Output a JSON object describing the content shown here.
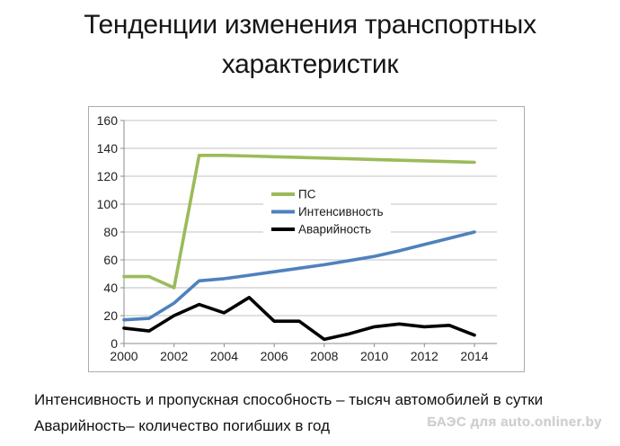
{
  "title": "Тенденции изменения транспортных характеристик",
  "footnotes": [
    "Интенсивность и пропускная способность – тысяч автомобилей в сутки",
    "Аварийность– количество погибших в год"
  ],
  "watermark": "БАЭС для auto.onliner.by",
  "colors": {
    "ps_green": "#9BBB59",
    "intensity_blue": "#4F81BD",
    "accidents_black": "#000000",
    "gridline": "#C2C2C2",
    "axis": "#8C8C8C",
    "frame_border": "#ABABAB"
  },
  "chart_data": {
    "type": "line",
    "title": "",
    "xlabel": "",
    "ylabel": "",
    "x": [
      2000,
      2001,
      2002,
      2003,
      2004,
      2005,
      2006,
      2007,
      2008,
      2009,
      2010,
      2011,
      2012,
      2013,
      2014
    ],
    "xticks": [
      2000,
      2002,
      2004,
      2006,
      2008,
      2010,
      2012,
      2014
    ],
    "ylim": [
      0,
      160
    ],
    "ytick_step": 20,
    "grid": true,
    "legend_position": "inside center-right",
    "series": [
      {
        "name": "ПС",
        "color": "#9BBB59",
        "values": [
          48,
          48,
          40,
          135,
          135,
          134.5,
          134,
          133.5,
          133,
          132.5,
          132,
          131.5,
          131,
          130.5,
          130
        ]
      },
      {
        "name": "Интенсивность",
        "color": "#4F81BD",
        "values": [
          17,
          18,
          29,
          45,
          46.5,
          49,
          51.5,
          54,
          56.5,
          59.5,
          62.5,
          66.5,
          71,
          75.5,
          80
        ]
      },
      {
        "name": "Аварийность",
        "color": "#000000",
        "values": [
          11,
          9,
          20,
          28,
          22,
          33,
          16,
          16,
          3,
          7,
          12,
          14,
          12,
          13,
          6
        ]
      }
    ]
  }
}
